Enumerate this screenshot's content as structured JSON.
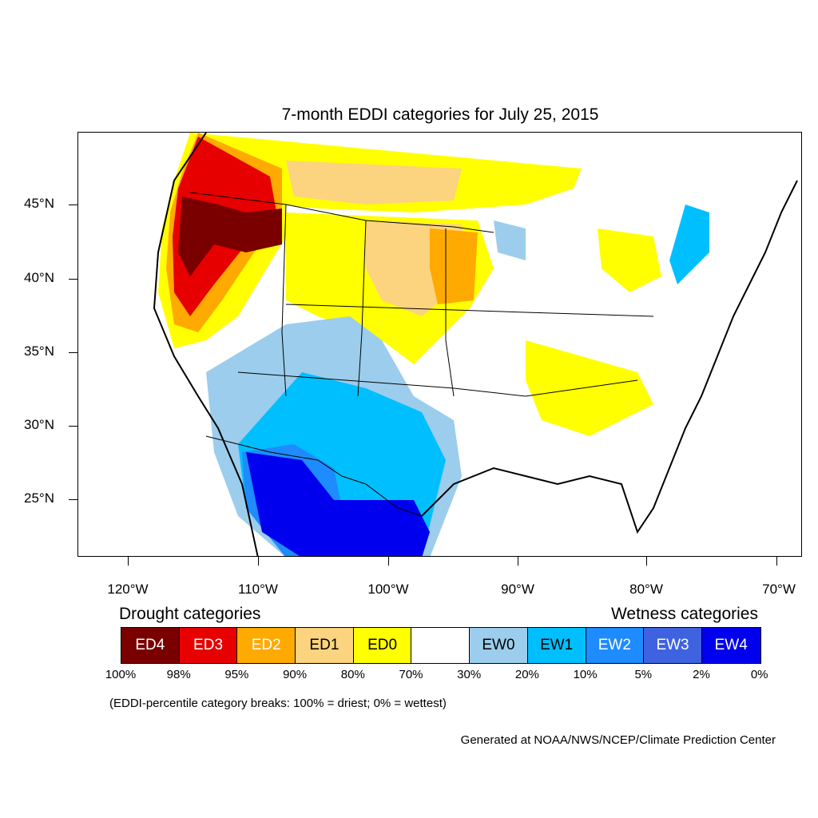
{
  "title": "7-month EDDI categories for July 25, 2015",
  "axes": {
    "lat_labels": [
      "45°N",
      "40°N",
      "35°N",
      "30°N",
      "25°N"
    ],
    "lon_labels": [
      "120°W",
      "110°W",
      "100°W",
      "90°W",
      "80°W",
      "70°W"
    ]
  },
  "legend": {
    "drought_heading": "Drought categories",
    "wetness_heading": "Wetness categories",
    "categories": [
      {
        "label": "ED4",
        "color": "#7a0000",
        "text_color": "#ffffff"
      },
      {
        "label": "ED3",
        "color": "#e60000",
        "text_color": "#ffffff"
      },
      {
        "label": "ED2",
        "color": "#ffaa00",
        "text_color": "#ffffff"
      },
      {
        "label": "ED1",
        "color": "#fcd37f",
        "text_color": "#000000"
      },
      {
        "label": "ED0",
        "color": "#ffff00",
        "text_color": "#000000"
      },
      {
        "label": "",
        "color": "#ffffff",
        "text_color": "#000000"
      },
      {
        "label": "EW0",
        "color": "#9ccdec",
        "text_color": "#000000"
      },
      {
        "label": "EW1",
        "color": "#00bfff",
        "text_color": "#000000"
      },
      {
        "label": "EW2",
        "color": "#1e8bff",
        "text_color": "#ffffff"
      },
      {
        "label": "EW3",
        "color": "#3f62e0",
        "text_color": "#ffffff"
      },
      {
        "label": "EW4",
        "color": "#0000ee",
        "text_color": "#ffffff"
      }
    ],
    "breaks": [
      "100%",
      "98%",
      "95%",
      "90%",
      "80%",
      "70%",
      "30%",
      "20%",
      "10%",
      "5%",
      "2%",
      "0%"
    ]
  },
  "note": "(EDDI-percentile category breaks: 100% = driest; 0% = wettest)",
  "credit": "Generated at NOAA/NWS/NCEP/Climate Prediction Center"
}
